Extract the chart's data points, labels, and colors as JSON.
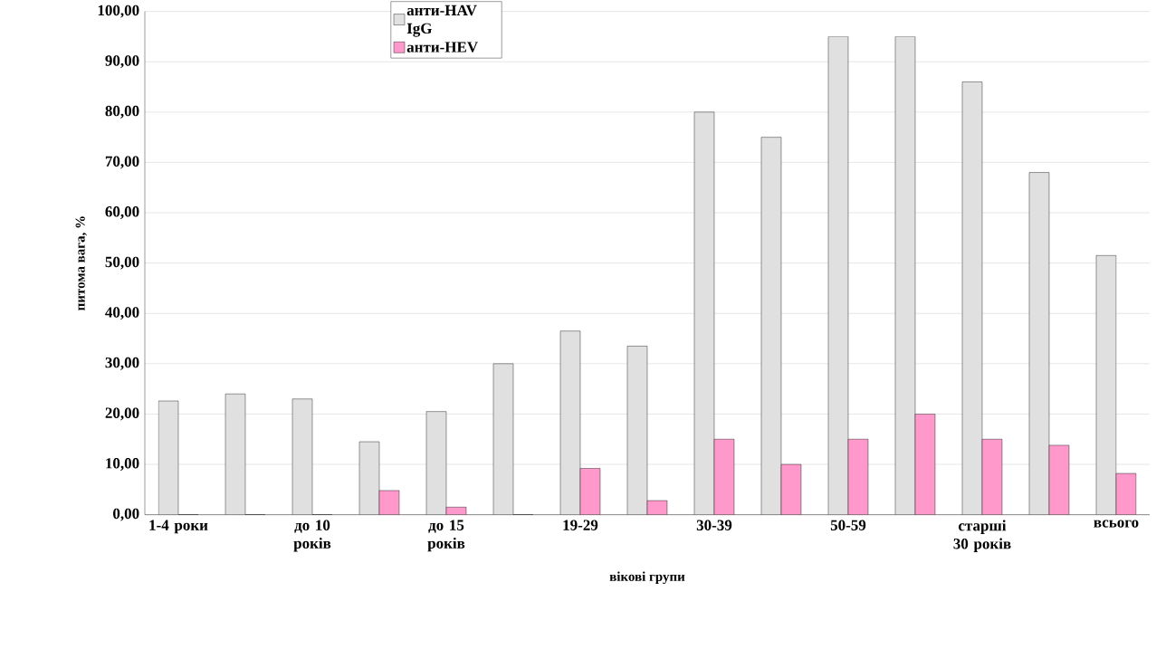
{
  "chart_data": {
    "type": "bar",
    "xlabel": "вікові групи",
    "ylabel": "питома вага, %",
    "categories": [
      "1-4 роки",
      null,
      "до 10 років",
      null,
      "до 15 років",
      null,
      "19-29",
      null,
      "30-39",
      null,
      "50-59",
      null,
      "старші 30 років",
      null,
      "всього"
    ],
    "series": [
      {
        "name": "анти-HAV IgG",
        "color": "#e0e0e0",
        "values": [
          22.6,
          24,
          23,
          14.5,
          20.5,
          30,
          36.5,
          33.5,
          80,
          75,
          95,
          95,
          86,
          68,
          51.5
        ]
      },
      {
        "name": "анти-HEV",
        "color": "#ff99cc",
        "values": [
          0,
          0,
          0,
          4.8,
          1.5,
          0,
          9.2,
          2.8,
          15,
          10,
          15,
          20,
          15,
          13.8,
          8.2
        ]
      }
    ],
    "ylim": [
      0,
      100
    ],
    "yticks": [
      {
        "value": 0,
        "label": "0,00"
      },
      {
        "value": 10,
        "label": "10,00"
      },
      {
        "value": 20,
        "label": "20,00"
      },
      {
        "value": 30,
        "label": "30,00"
      },
      {
        "value": 40,
        "label": "40,00"
      },
      {
        "value": 50,
        "label": "50,00"
      },
      {
        "value": 60,
        "label": "60,00"
      },
      {
        "value": 70,
        "label": "70,00"
      },
      {
        "value": 80,
        "label": "80,00"
      },
      {
        "value": 90,
        "label": "90,00"
      },
      {
        "value": 100,
        "label": "100,00"
      }
    ],
    "grid": "y",
    "legend": "top"
  }
}
